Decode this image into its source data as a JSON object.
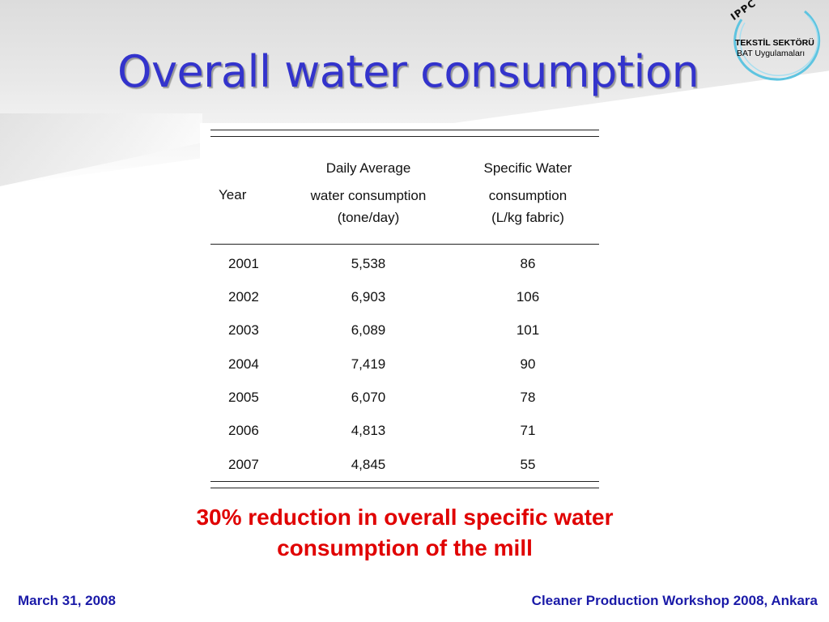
{
  "slide": {
    "title": "Overall water consumption",
    "logo": {
      "ippc": "IPPC",
      "line1": "TEKSTİL SEKTÖRÜ",
      "line2": "BAT Uygulamaları"
    },
    "table": {
      "headers": {
        "year": "Year",
        "daily_1": "Daily Average",
        "daily_2": "water consumption",
        "daily_3": "(tone/day)",
        "specific_1": "Specific Water",
        "specific_2": "consumption",
        "specific_3": "(L/kg fabric)"
      },
      "rows": [
        {
          "year": "2001",
          "daily": "5,538",
          "specific": "86"
        },
        {
          "year": "2002",
          "daily": "6,903",
          "specific": "106"
        },
        {
          "year": "2003",
          "daily": "6,089",
          "specific": "101"
        },
        {
          "year": "2004",
          "daily": "7,419",
          "specific": "90"
        },
        {
          "year": "2005",
          "daily": "6,070",
          "specific": "78"
        },
        {
          "year": "2006",
          "daily": "4,813",
          "specific": "71"
        },
        {
          "year": "2007",
          "daily": "4,845",
          "specific": "55"
        }
      ]
    },
    "callout_line1": "30% reduction in overall specific water",
    "callout_line2": "consumption of the mill",
    "footer_left": "March 31, 2008",
    "footer_right": "Cleaner Production Workshop 2008, Ankara",
    "colors": {
      "title": "#3333cc",
      "callout": "#e00000",
      "footer": "#1a1aa8",
      "logo_ring": "#5ec4e0"
    }
  }
}
